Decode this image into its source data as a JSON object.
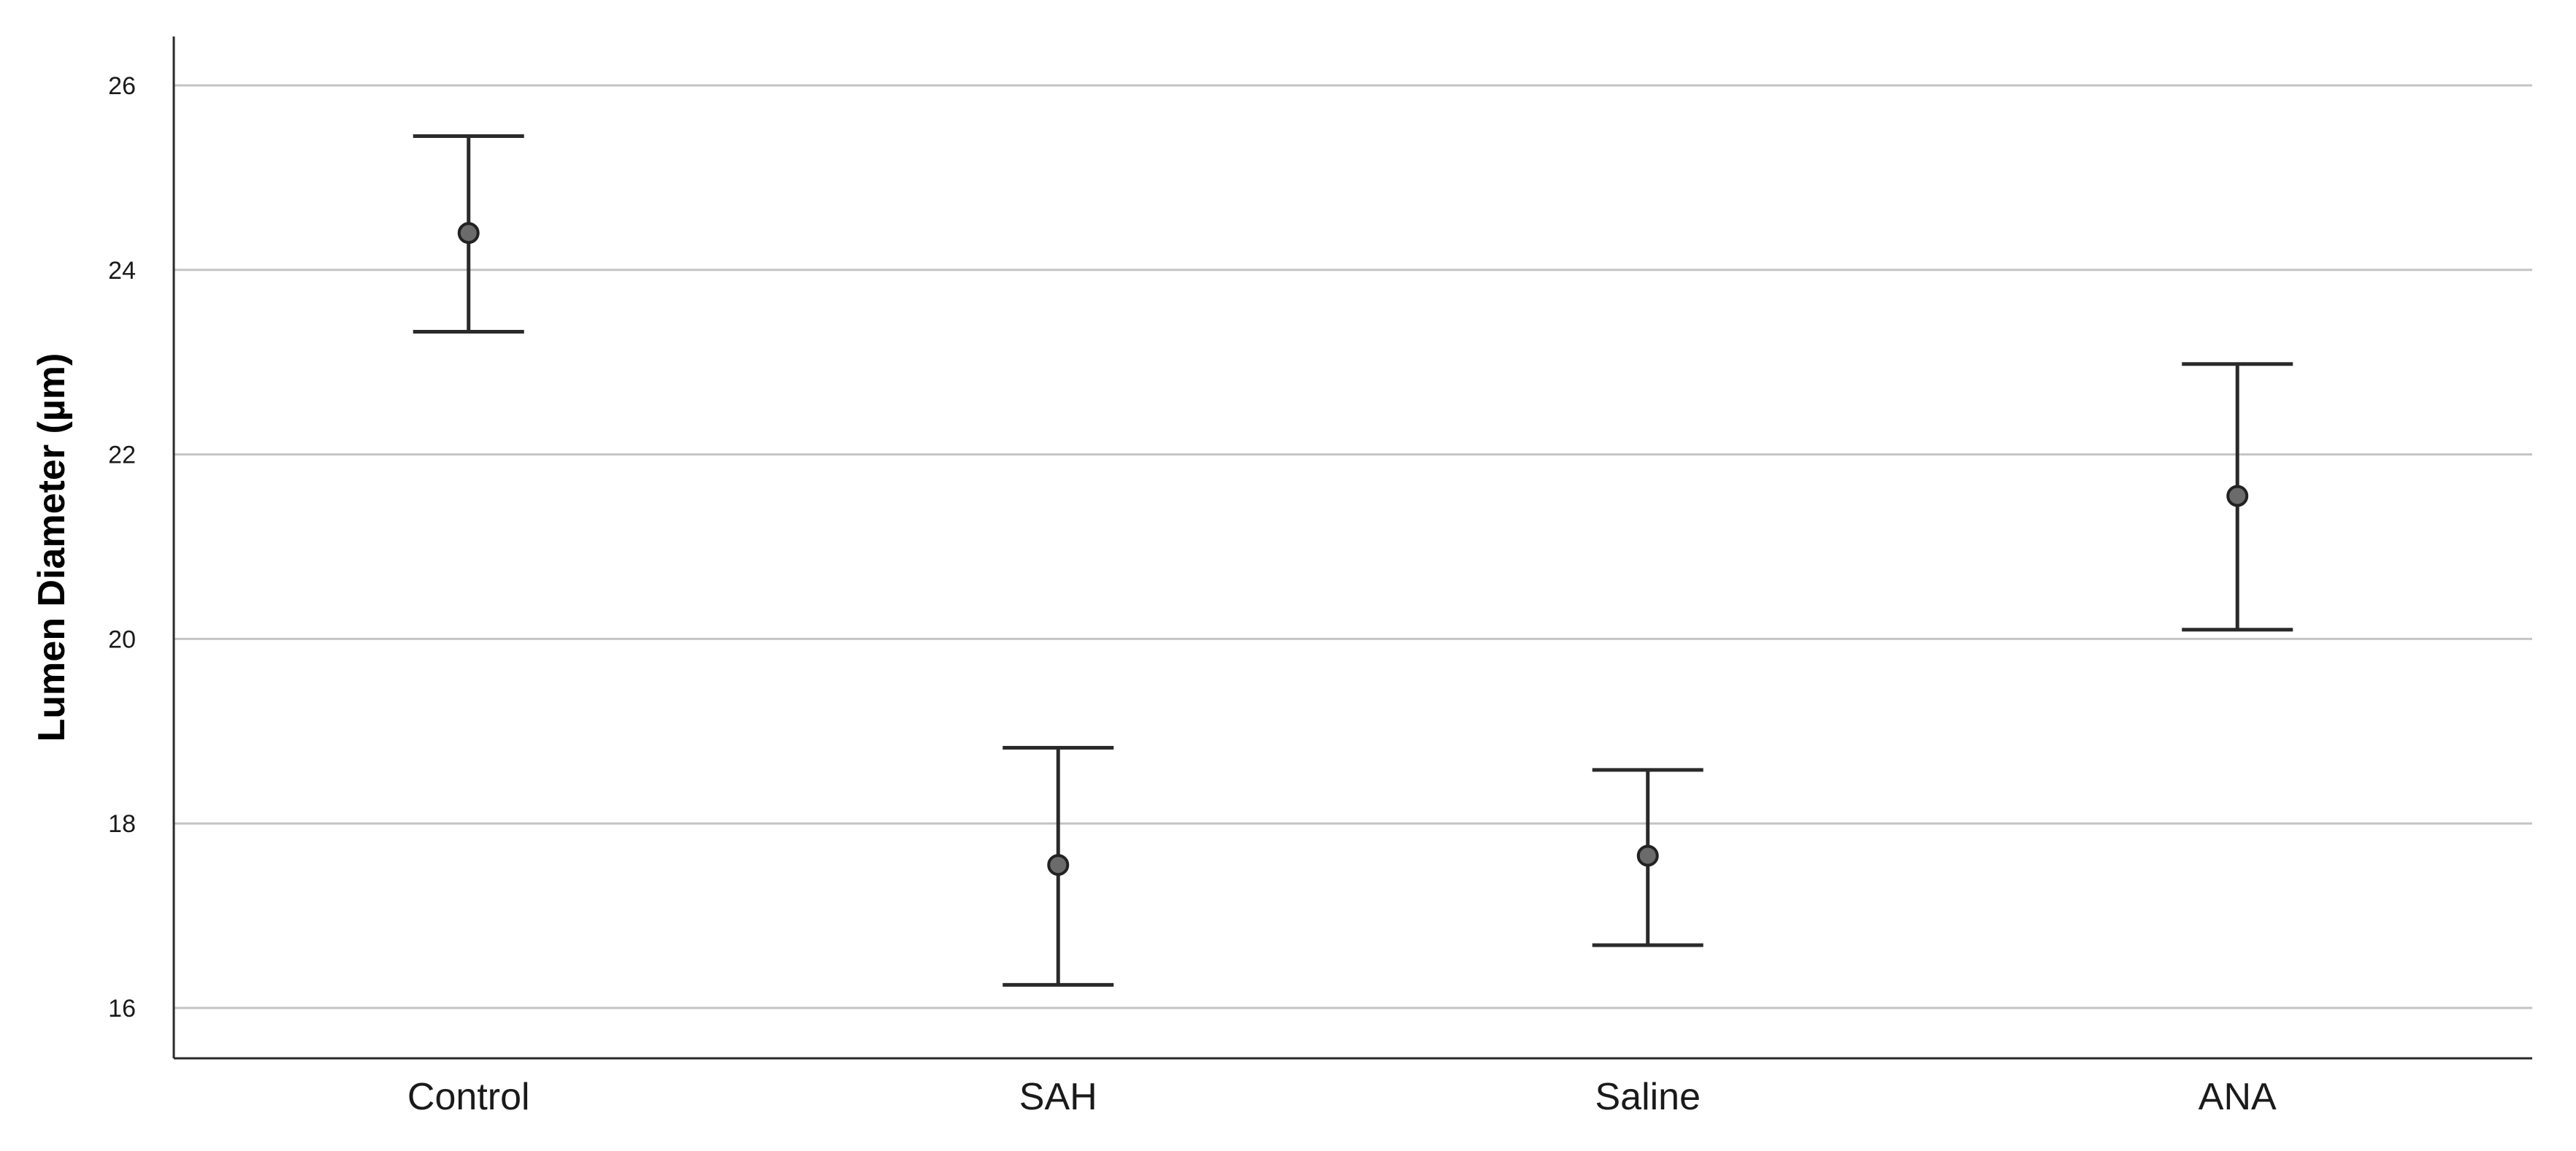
{
  "chart_data": {
    "type": "errorbar",
    "ylabel": "Lumen Diameter (µm)",
    "ylim": [
      15.5,
      26.5
    ],
    "yticks": [
      16,
      18,
      20,
      22,
      24,
      26
    ],
    "grid": true,
    "categories": [
      "Control",
      "SAH",
      "Saline",
      "ANA"
    ],
    "means": [
      24.4,
      17.55,
      17.65,
      21.55
    ],
    "lower": [
      23.33,
      16.25,
      16.68,
      20.1
    ],
    "upper": [
      25.45,
      18.82,
      18.58,
      22.98
    ]
  }
}
